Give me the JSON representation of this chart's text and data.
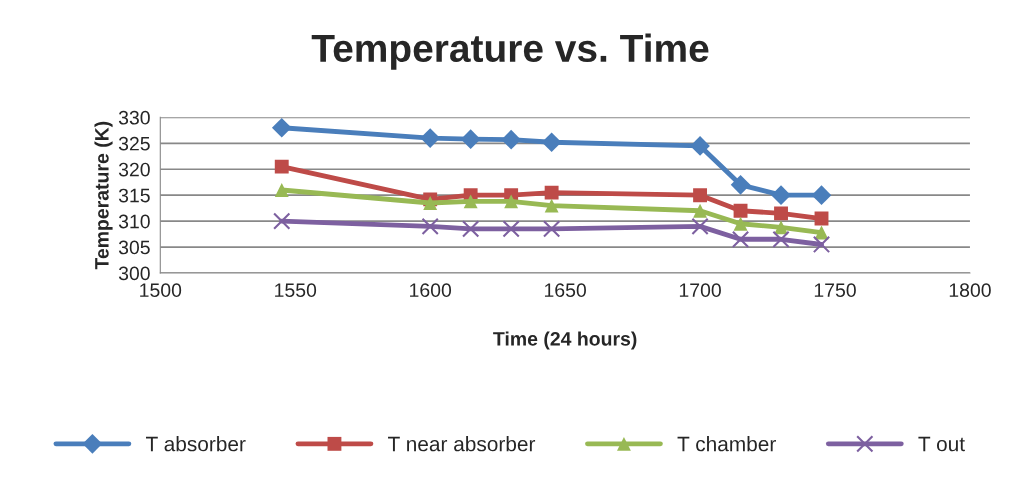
{
  "chart_data": {
    "type": "line",
    "title": "Temperature vs. Time",
    "xlabel": "Time (24 hours)",
    "ylabel": "Temperature (K)",
    "x": [
      1545,
      1600,
      1615,
      1630,
      1645,
      1700,
      1715,
      1730,
      1745
    ],
    "series": [
      {
        "name": "T absorber",
        "color": "#4a7ebb",
        "marker": "diamond",
        "values": [
          328,
          326,
          325.8,
          325.7,
          325.2,
          324.5,
          317,
          315,
          315
        ]
      },
      {
        "name": "T near absorber",
        "color": "#be4b48",
        "marker": "square",
        "values": [
          320.5,
          314.2,
          315,
          315,
          315.5,
          315,
          312,
          311.5,
          310.5
        ]
      },
      {
        "name": "T chamber",
        "color": "#98b954",
        "marker": "triangle",
        "values": [
          316,
          313.5,
          313.8,
          313.8,
          313,
          312,
          309.5,
          308.8,
          307.8
        ]
      },
      {
        "name": "T out",
        "color": "#7d60a0",
        "marker": "cross",
        "values": [
          310,
          309,
          308.5,
          308.5,
          308.5,
          309,
          306.5,
          306.5,
          305.5
        ]
      }
    ],
    "xlim": [
      1500,
      1800
    ],
    "xticks": [
      1500,
      1550,
      1600,
      1650,
      1700,
      1750,
      1800
    ],
    "ylim": [
      300,
      330
    ],
    "yticks": [
      300,
      305,
      310,
      315,
      320,
      325,
      330
    ],
    "grid": "y",
    "legend": "bottom"
  }
}
